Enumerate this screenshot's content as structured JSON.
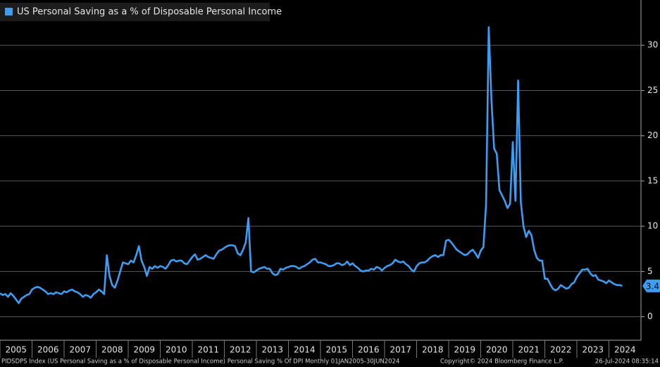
{
  "chart_data": {
    "type": "line",
    "legend_title": "US Personal Saving as a % of Disposable Personal Income",
    "footer_left": "PIDSDPS Index (US Personal Saving as a % of Disposable Personal Income) Personal Saving % Of DPI  Monthly 01JAN2005-30JUN2024",
    "footer_center": "Copyright© 2024 Bloomberg Finance L.P.",
    "footer_right": "26-Jul-2024 08:35:14",
    "xlim": [
      2005,
      2025
    ],
    "xticks": [
      2005,
      2006,
      2007,
      2008,
      2009,
      2010,
      2011,
      2012,
      2013,
      2014,
      2015,
      2016,
      2017,
      2018,
      2019,
      2020,
      2021,
      2022,
      2023,
      2024
    ],
    "ylim": [
      -2.6,
      35
    ],
    "yticks": [
      0,
      5,
      10,
      15,
      20,
      25,
      30
    ],
    "grid": true,
    "series": [
      {
        "name": "US Personal Saving as a % of Disposable Personal Income",
        "color": "#3d9df2",
        "x": [
          "2005-01",
          "2005-02",
          "2005-03",
          "2005-04",
          "2005-05",
          "2005-06",
          "2005-07",
          "2005-08",
          "2005-09",
          "2005-10",
          "2005-11",
          "2005-12",
          "2006-01",
          "2006-02",
          "2006-03",
          "2006-04",
          "2006-05",
          "2006-06",
          "2006-07",
          "2006-08",
          "2006-09",
          "2006-10",
          "2006-11",
          "2006-12",
          "2007-01",
          "2007-02",
          "2007-03",
          "2007-04",
          "2007-05",
          "2007-06",
          "2007-07",
          "2007-08",
          "2007-09",
          "2007-10",
          "2007-11",
          "2007-12",
          "2008-01",
          "2008-02",
          "2008-03",
          "2008-04",
          "2008-05",
          "2008-06",
          "2008-07",
          "2008-08",
          "2008-09",
          "2008-10",
          "2008-11",
          "2008-12",
          "2009-01",
          "2009-02",
          "2009-03",
          "2009-04",
          "2009-05",
          "2009-06",
          "2009-07",
          "2009-08",
          "2009-09",
          "2009-10",
          "2009-11",
          "2009-12",
          "2010-01",
          "2010-02",
          "2010-03",
          "2010-04",
          "2010-05",
          "2010-06",
          "2010-07",
          "2010-08",
          "2010-09",
          "2010-10",
          "2010-11",
          "2010-12",
          "2011-01",
          "2011-02",
          "2011-03",
          "2011-04",
          "2011-05",
          "2011-06",
          "2011-07",
          "2011-08",
          "2011-09",
          "2011-10",
          "2011-11",
          "2011-12",
          "2012-01",
          "2012-02",
          "2012-03",
          "2012-04",
          "2012-05",
          "2012-06",
          "2012-07",
          "2012-08",
          "2012-09",
          "2012-10",
          "2012-11",
          "2012-12",
          "2013-01",
          "2013-02",
          "2013-03",
          "2013-04",
          "2013-05",
          "2013-06",
          "2013-07",
          "2013-08",
          "2013-09",
          "2013-10",
          "2013-11",
          "2013-12",
          "2014-01",
          "2014-02",
          "2014-03",
          "2014-04",
          "2014-05",
          "2014-06",
          "2014-07",
          "2014-08",
          "2014-09",
          "2014-10",
          "2014-11",
          "2014-12",
          "2015-01",
          "2015-02",
          "2015-03",
          "2015-04",
          "2015-05",
          "2015-06",
          "2015-07",
          "2015-08",
          "2015-09",
          "2015-10",
          "2015-11",
          "2015-12",
          "2016-01",
          "2016-02",
          "2016-03",
          "2016-04",
          "2016-05",
          "2016-06",
          "2016-07",
          "2016-08",
          "2016-09",
          "2016-10",
          "2016-11",
          "2016-12",
          "2017-01",
          "2017-02",
          "2017-03",
          "2017-04",
          "2017-05",
          "2017-06",
          "2017-07",
          "2017-08",
          "2017-09",
          "2017-10",
          "2017-11",
          "2017-12",
          "2018-01",
          "2018-02",
          "2018-03",
          "2018-04",
          "2018-05",
          "2018-06",
          "2018-07",
          "2018-08",
          "2018-09",
          "2018-10",
          "2018-11",
          "2018-12",
          "2019-01",
          "2019-02",
          "2019-03",
          "2019-04",
          "2019-05",
          "2019-06",
          "2019-07",
          "2019-08",
          "2019-09",
          "2019-10",
          "2019-11",
          "2019-12",
          "2020-01",
          "2020-02",
          "2020-03",
          "2020-04",
          "2020-05",
          "2020-06",
          "2020-07",
          "2020-08",
          "2020-09",
          "2020-10",
          "2020-11",
          "2020-12",
          "2021-01",
          "2021-02",
          "2021-03",
          "2021-04",
          "2021-05",
          "2021-06",
          "2021-07",
          "2021-08",
          "2021-09",
          "2021-10",
          "2021-11",
          "2021-12",
          "2022-01",
          "2022-02",
          "2022-03",
          "2022-04",
          "2022-05",
          "2022-06",
          "2022-07",
          "2022-08",
          "2022-09",
          "2022-10",
          "2022-11",
          "2022-12",
          "2023-01",
          "2023-02",
          "2023-03",
          "2023-04",
          "2023-05",
          "2023-06",
          "2023-07",
          "2023-08",
          "2023-09",
          "2023-10",
          "2023-11",
          "2023-12",
          "2024-01",
          "2024-02",
          "2024-03",
          "2024-04",
          "2024-05",
          "2024-06"
        ],
        "values": [
          2.6,
          2.4,
          2.5,
          2.2,
          2.6,
          2.3,
          1.9,
          1.5,
          2.0,
          2.2,
          2.4,
          2.5,
          3.0,
          3.2,
          3.3,
          3.2,
          3.0,
          2.8,
          2.5,
          2.6,
          2.5,
          2.7,
          2.6,
          2.5,
          2.8,
          2.7,
          2.9,
          3.0,
          2.8,
          2.7,
          2.5,
          2.2,
          2.4,
          2.3,
          2.1,
          2.5,
          2.7,
          3.0,
          2.8,
          2.5,
          6.8,
          4.5,
          3.5,
          3.2,
          4.0,
          5.0,
          6.0,
          5.9,
          5.8,
          6.2,
          6.0,
          6.8,
          7.8,
          6.2,
          5.5,
          4.5,
          5.5,
          5.3,
          5.6,
          5.4,
          5.6,
          5.5,
          5.3,
          5.7,
          6.2,
          6.3,
          6.1,
          6.2,
          6.2,
          5.9,
          5.8,
          6.2,
          6.6,
          6.9,
          6.3,
          6.4,
          6.6,
          6.8,
          6.6,
          6.5,
          6.4,
          6.9,
          7.3,
          7.4,
          7.6,
          7.8,
          7.9,
          7.9,
          7.8,
          7.0,
          6.8,
          7.4,
          8.2,
          10.9,
          5.0,
          4.9,
          5.1,
          5.3,
          5.4,
          5.5,
          5.3,
          5.3,
          4.8,
          4.6,
          4.7,
          5.3,
          5.2,
          5.4,
          5.5,
          5.6,
          5.6,
          5.5,
          5.3,
          5.5,
          5.6,
          5.8,
          6.0,
          6.3,
          6.4,
          6.0,
          6.0,
          5.9,
          5.8,
          5.6,
          5.6,
          5.7,
          5.9,
          5.9,
          5.7,
          5.8,
          6.1,
          5.7,
          5.9,
          5.6,
          5.4,
          5.1,
          5.0,
          5.1,
          5.1,
          5.3,
          5.2,
          5.5,
          5.4,
          5.1,
          5.4,
          5.6,
          5.7,
          5.9,
          6.3,
          6.1,
          6.0,
          6.1,
          5.8,
          5.6,
          5.2,
          5.0,
          5.6,
          5.9,
          6.0,
          6.0,
          6.2,
          6.5,
          6.7,
          6.8,
          6.6,
          6.8,
          6.8,
          8.4,
          8.5,
          8.2,
          7.8,
          7.4,
          7.2,
          7.0,
          6.8,
          6.9,
          7.2,
          7.4,
          7.0,
          6.5,
          7.3,
          7.7,
          12.4,
          32.0,
          24.0,
          18.6,
          18.0,
          14.0,
          13.4,
          12.8,
          12.0,
          12.5,
          19.3,
          12.8,
          26.1,
          12.7,
          10.0,
          8.8,
          9.5,
          9.0,
          7.4,
          6.5,
          6.2,
          6.2,
          4.2,
          4.2,
          3.6,
          3.1,
          2.9,
          3.1,
          3.5,
          3.3,
          3.1,
          3.2,
          3.6,
          3.8,
          4.4,
          4.8,
          5.2,
          5.2,
          5.3,
          4.8,
          4.5,
          4.6,
          4.1,
          4.0,
          3.9,
          3.7,
          4.0,
          3.8,
          3.6,
          3.5,
          3.5,
          3.4
        ]
      }
    ]
  }
}
